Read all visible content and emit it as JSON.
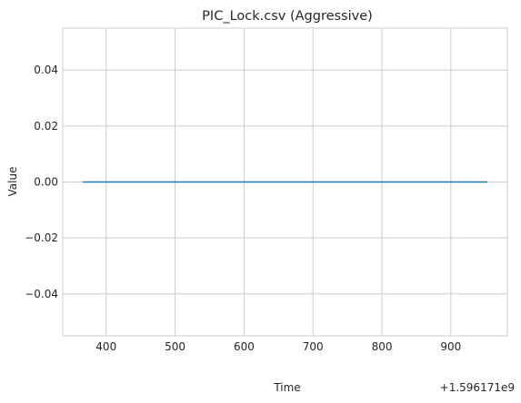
{
  "chart_data": {
    "type": "line",
    "title": "PIC_Lock.csv (Aggressive)",
    "xlabel": "Time",
    "ylabel": "Value",
    "x_offset_label": "+1.596171e9",
    "xlim": [
      337,
      982
    ],
    "ylim": [
      -0.055,
      0.055
    ],
    "x_ticks": [
      400,
      500,
      600,
      700,
      800,
      900
    ],
    "x_tick_labels": [
      "400",
      "500",
      "600",
      "700",
      "800",
      "900"
    ],
    "y_ticks": [
      -0.04,
      -0.02,
      0.0,
      0.02,
      0.04
    ],
    "y_tick_labels": [
      "−0.04",
      "−0.02",
      "0.00",
      "0.02",
      "0.04"
    ],
    "grid": true,
    "series": [
      {
        "color": "#1f77b4",
        "x": [
          366,
          953
        ],
        "y": [
          0.0,
          0.0
        ]
      }
    ]
  }
}
